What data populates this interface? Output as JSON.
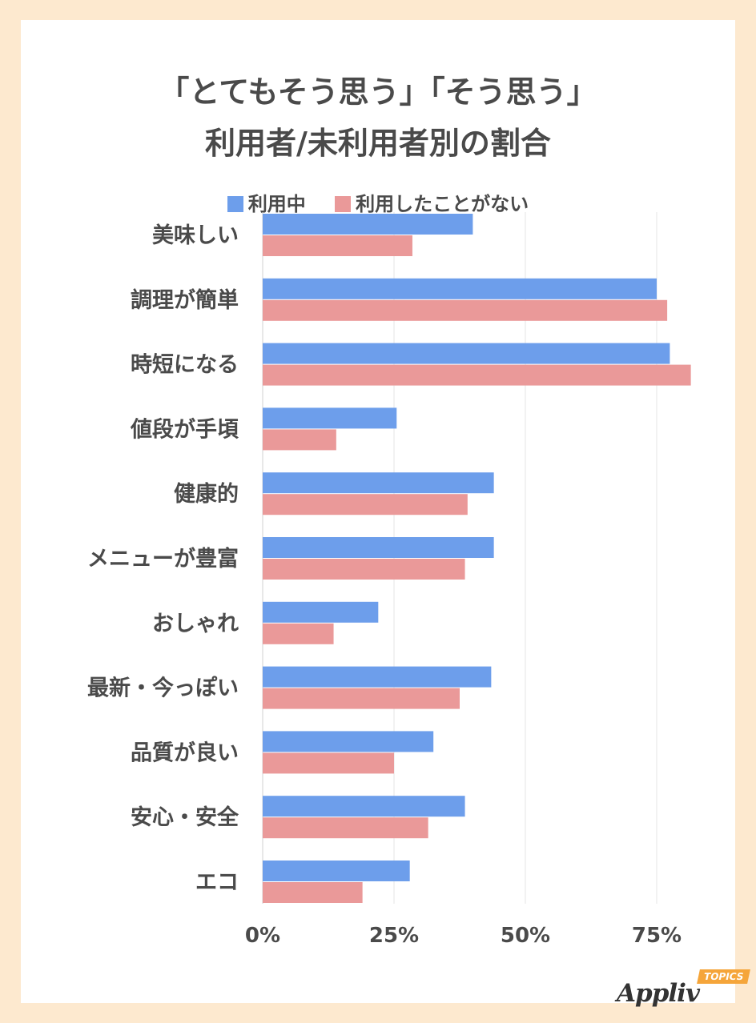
{
  "chart_data": {
    "type": "bar",
    "orientation": "horizontal",
    "title": [
      "「とてもそう思う」「そう思う」",
      "利用者/未利用者別の割合"
    ],
    "xlabel": "",
    "ylabel": "",
    "xlim": [
      0,
      85
    ],
    "xticks": [
      0,
      25,
      50,
      75
    ],
    "xtick_labels": [
      "0%",
      "25%",
      "50%",
      "75%"
    ],
    "grid": true,
    "legend_position": "top",
    "categories": [
      "美味しい",
      "調理が簡単",
      "時短になる",
      "値段が手頃",
      "健康的",
      "メニューが豊富",
      "おしゃれ",
      "最新・今っぽい",
      "品質が良い",
      "安心・安全",
      "エコ"
    ],
    "series": [
      {
        "name": "利用中",
        "color": "#6d9eeb",
        "values": [
          40,
          75,
          77.5,
          25.5,
          44,
          44,
          22,
          43.5,
          32.5,
          38.5,
          28
        ]
      },
      {
        "name": "利用したことがない",
        "color": "#ea9999",
        "values": [
          28.5,
          77,
          81.5,
          14,
          39,
          38.5,
          13.5,
          37.5,
          25,
          31.5,
          19
        ]
      }
    ]
  },
  "brand": {
    "name": "Appliv",
    "tag": "TOPICS"
  },
  "colors": {
    "background": "#fde9cf",
    "card": "#ffffff",
    "text": "#4a4a4a",
    "grid": "#e6e6e6"
  }
}
